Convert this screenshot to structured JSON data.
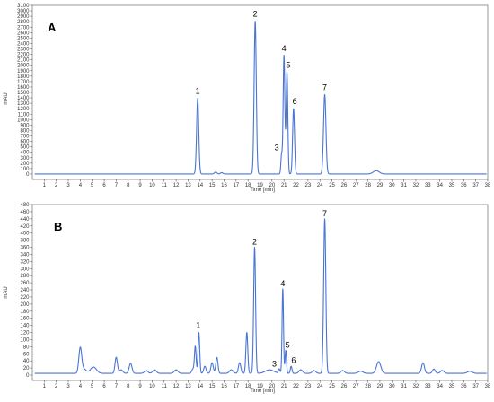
{
  "chart_data": [
    {
      "type": "line",
      "panel_label": "A",
      "xlabel": "Time [min]",
      "ylabel": "mAU",
      "xlim": [
        0,
        38
      ],
      "ylim": [
        -100,
        3100
      ],
      "x_ticks": [
        1,
        2,
        3,
        4,
        5,
        6,
        7,
        8,
        9,
        10,
        11,
        12,
        13,
        14,
        15,
        16,
        17,
        18,
        19,
        20,
        21,
        22,
        23,
        24,
        25,
        26,
        27,
        28,
        29,
        30,
        31,
        32,
        33,
        34,
        35,
        36,
        37,
        38
      ],
      "y_ticks": [
        0,
        100,
        200,
        300,
        400,
        500,
        600,
        700,
        800,
        900,
        1000,
        1100,
        1200,
        1300,
        1400,
        1500,
        1600,
        1700,
        1800,
        1900,
        2000,
        2100,
        2200,
        2300,
        2400,
        2500,
        2600,
        2700,
        2800,
        2900,
        3000,
        3100
      ],
      "grid": false,
      "line_color": "#4a74d4",
      "baseline": 0,
      "peaks": [
        {
          "rt": 13.8,
          "height": 1390,
          "width": 0.09
        },
        {
          "rt": 15.3,
          "height": 35,
          "width": 0.1
        },
        {
          "rt": 15.8,
          "height": 25,
          "width": 0.1
        },
        {
          "rt": 18.6,
          "height": 2810,
          "width": 0.09
        },
        {
          "rt": 20.8,
          "height": 350,
          "width": 0.06
        },
        {
          "rt": 21.0,
          "height": 2180,
          "width": 0.07
        },
        {
          "rt": 21.25,
          "height": 1870,
          "width": 0.07
        },
        {
          "rt": 21.8,
          "height": 1200,
          "width": 0.08
        },
        {
          "rt": 24.4,
          "height": 1460,
          "width": 0.1
        },
        {
          "rt": 28.7,
          "height": 60,
          "width": 0.25
        }
      ],
      "annotations": [
        {
          "label": "1",
          "x": 13.8,
          "y": 1390
        },
        {
          "label": "2",
          "x": 18.6,
          "y": 2810
        },
        {
          "label": "3",
          "x": 20.4,
          "y": 350
        },
        {
          "label": "4",
          "x": 21.0,
          "y": 2180
        },
        {
          "label": "5",
          "x": 21.35,
          "y": 1870
        },
        {
          "label": "6",
          "x": 21.9,
          "y": 1200
        },
        {
          "label": "7",
          "x": 24.4,
          "y": 1460
        }
      ]
    },
    {
      "type": "line",
      "panel_label": "B",
      "xlabel": "Time [min]",
      "ylabel": "mAU",
      "xlim": [
        0,
        38
      ],
      "ylim": [
        -15,
        480
      ],
      "x_ticks": [
        1,
        2,
        3,
        4,
        5,
        6,
        7,
        8,
        9,
        10,
        11,
        12,
        13,
        14,
        15,
        16,
        17,
        18,
        19,
        20,
        21,
        22,
        23,
        24,
        25,
        26,
        27,
        28,
        29,
        30,
        31,
        32,
        33,
        34,
        35,
        36,
        37,
        38
      ],
      "y_ticks": [
        0,
        20,
        40,
        60,
        80,
        100,
        120,
        140,
        160,
        180,
        200,
        220,
        240,
        260,
        280,
        300,
        320,
        340,
        360,
        380,
        400,
        420,
        440,
        460,
        480
      ],
      "grid": false,
      "line_color": "#4a74d4",
      "baseline": 5,
      "peaks": [
        {
          "rt": 4.0,
          "height": 70,
          "width": 0.12
        },
        {
          "rt": 4.3,
          "height": 12,
          "width": 0.2
        },
        {
          "rt": 5.1,
          "height": 18,
          "width": 0.25
        },
        {
          "rt": 7.0,
          "height": 45,
          "width": 0.1
        },
        {
          "rt": 7.4,
          "height": 10,
          "width": 0.15
        },
        {
          "rt": 8.2,
          "height": 28,
          "width": 0.12
        },
        {
          "rt": 9.5,
          "height": 8,
          "width": 0.15
        },
        {
          "rt": 10.2,
          "height": 10,
          "width": 0.15
        },
        {
          "rt": 12.0,
          "height": 10,
          "width": 0.15
        },
        {
          "rt": 13.4,
          "height": 12,
          "width": 0.1
        },
        {
          "rt": 13.6,
          "height": 75,
          "width": 0.07
        },
        {
          "rt": 13.9,
          "height": 115,
          "width": 0.07
        },
        {
          "rt": 14.4,
          "height": 20,
          "width": 0.1
        },
        {
          "rt": 15.0,
          "height": 30,
          "width": 0.1
        },
        {
          "rt": 15.4,
          "height": 45,
          "width": 0.09
        },
        {
          "rt": 16.6,
          "height": 10,
          "width": 0.15
        },
        {
          "rt": 17.3,
          "height": 30,
          "width": 0.1
        },
        {
          "rt": 17.9,
          "height": 115,
          "width": 0.08
        },
        {
          "rt": 18.55,
          "height": 355,
          "width": 0.08
        },
        {
          "rt": 19.8,
          "height": 10,
          "width": 0.35
        },
        {
          "rt": 20.6,
          "height": 12,
          "width": 0.07
        },
        {
          "rt": 20.9,
          "height": 238,
          "width": 0.06
        },
        {
          "rt": 21.15,
          "height": 65,
          "width": 0.06
        },
        {
          "rt": 21.6,
          "height": 20,
          "width": 0.07
        },
        {
          "rt": 22.4,
          "height": 10,
          "width": 0.15
        },
        {
          "rt": 23.5,
          "height": 8,
          "width": 0.15
        },
        {
          "rt": 24.4,
          "height": 435,
          "width": 0.09
        },
        {
          "rt": 25.9,
          "height": 8,
          "width": 0.15
        },
        {
          "rt": 27.4,
          "height": 6,
          "width": 0.2
        },
        {
          "rt": 28.9,
          "height": 33,
          "width": 0.18
        },
        {
          "rt": 32.6,
          "height": 30,
          "width": 0.12
        },
        {
          "rt": 33.5,
          "height": 12,
          "width": 0.12
        },
        {
          "rt": 34.2,
          "height": 8,
          "width": 0.15
        },
        {
          "rt": 36.5,
          "height": 6,
          "width": 0.2
        }
      ],
      "annotations": [
        {
          "label": "1",
          "x": 13.85,
          "y": 120
        },
        {
          "label": "2",
          "x": 18.55,
          "y": 355
        },
        {
          "label": "3",
          "x": 20.2,
          "y": 12
        },
        {
          "label": "4",
          "x": 20.9,
          "y": 238
        },
        {
          "label": "5",
          "x": 21.3,
          "y": 65
        },
        {
          "label": "6",
          "x": 21.8,
          "y": 22
        },
        {
          "label": "7",
          "x": 24.4,
          "y": 435
        }
      ]
    }
  ]
}
